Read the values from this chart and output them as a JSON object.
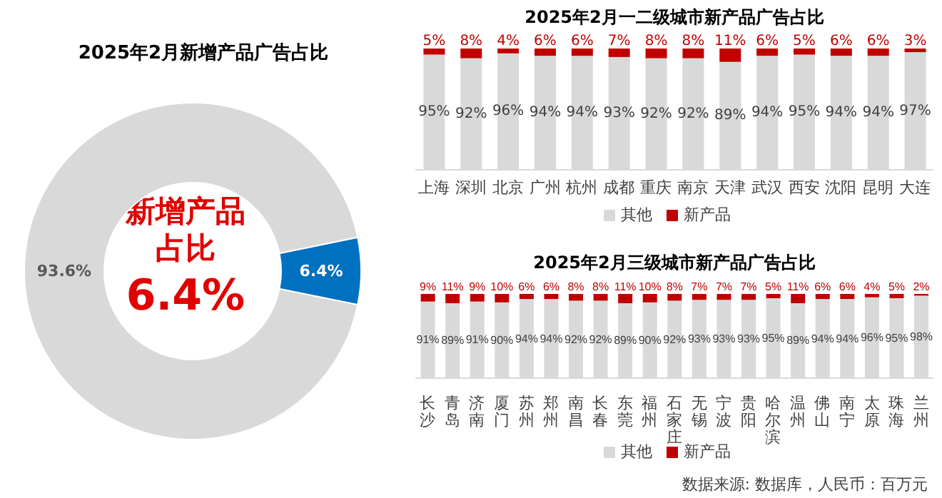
{
  "chart_data": [
    {
      "type": "donut",
      "title": "2025年2月新增产品广告占比",
      "categories": [
        null,
        null
      ],
      "values": [
        93.6,
        6.4
      ],
      "colors": [
        "#d9d9d9",
        "#0070c0"
      ],
      "value_labels": [
        "93.6%",
        "6.4%"
      ],
      "annotations": [
        "新增产品",
        "占比",
        "6.4%"
      ]
    },
    {
      "type": "bar",
      "title": "2025年2月一二级城市新产品广告占比",
      "stacked": true,
      "legend": "bottom",
      "tick_labels": "x",
      "ylim": [
        0,
        100
      ],
      "categories": [
        "上海",
        "深圳",
        "北京",
        "广州",
        "杭州",
        "成都",
        "重庆",
        "南京",
        "天津",
        "武汉",
        "西安",
        "沈阳",
        "昆明",
        "大连"
      ],
      "series": [
        {
          "name": "其他",
          "color": "#d9d9d9",
          "values": [
            95,
            92,
            96,
            94,
            94,
            93,
            92,
            92,
            89,
            94,
            95,
            94,
            94,
            97
          ],
          "value_labels": [
            "95%",
            "92%",
            "96%",
            "94%",
            "94%",
            "93%",
            "92%",
            "92%",
            "89%",
            "94%",
            "95%",
            "94%",
            "94%",
            "97%"
          ]
        },
        {
          "name": "新产品",
          "color": "#c00000",
          "values": [
            5,
            8,
            4,
            6,
            6,
            7,
            8,
            8,
            11,
            6,
            5,
            6,
            6,
            3
          ],
          "value_labels": [
            "5%",
            "8%",
            "4%",
            "6%",
            "6%",
            "7%",
            "8%",
            "8%",
            "11%",
            "6%",
            "5%",
            "6%",
            "6%",
            "3%"
          ]
        }
      ]
    },
    {
      "type": "bar",
      "title": "2025年2月三级城市新产品广告占比",
      "stacked": true,
      "legend": "bottom",
      "tick_labels": "x",
      "ylim": [
        0,
        100
      ],
      "categories": [
        "长沙",
        "青岛",
        "济南",
        "厦门",
        "苏州",
        "郑州",
        "南昌",
        "长春",
        "东莞",
        "福州",
        "石家庄",
        "无锡",
        "宁波",
        "贵阳",
        "哈尔滨",
        "温州",
        "佛山",
        "南宁",
        "太原",
        "珠海",
        "兰州"
      ],
      "series": [
        {
          "name": "其他",
          "color": "#d9d9d9",
          "values": [
            91,
            89,
            91,
            90,
            94,
            94,
            92,
            92,
            89,
            90,
            92,
            93,
            93,
            93,
            95,
            89,
            94,
            94,
            96,
            95,
            98
          ],
          "value_labels": [
            "91%",
            "89%",
            "91%",
            "90%",
            "94%",
            "94%",
            "92%",
            "92%",
            "89%",
            "90%",
            "92%",
            "93%",
            "93%",
            "93%",
            "95%",
            "89%",
            "94%",
            "94%",
            "96%",
            "95%",
            "98%"
          ]
        },
        {
          "name": "新产品",
          "color": "#c00000",
          "values": [
            9,
            11,
            9,
            10,
            6,
            6,
            8,
            8,
            11,
            10,
            8,
            7,
            7,
            7,
            5,
            11,
            6,
            6,
            4,
            5,
            2
          ],
          "value_labels": [
            "9%",
            "11%",
            "9%",
            "10%",
            "6%",
            "6%",
            "8%",
            "8%",
            "11%",
            "10%",
            "8%",
            "7%",
            "7%",
            "7%",
            "5%",
            "11%",
            "6%",
            "6%",
            "4%",
            "5%",
            "2%"
          ]
        }
      ],
      "annotations": [
        "数据来源: 数据库，人民币：百万元"
      ]
    }
  ]
}
